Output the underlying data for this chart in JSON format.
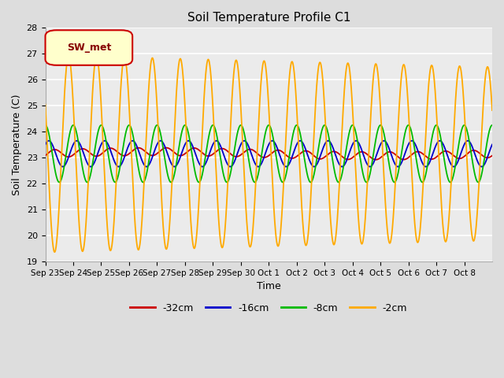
{
  "title": "Soil Temperature Profile C1",
  "xlabel": "Time",
  "ylabel": "Soil Temperature (C)",
  "ylim": [
    19.0,
    28.0
  ],
  "yticks": [
    19.0,
    20.0,
    21.0,
    22.0,
    23.0,
    24.0,
    25.0,
    26.0,
    27.0,
    28.0
  ],
  "xtick_labels": [
    "Sep 23",
    "Sep 24",
    "Sep 25",
    "Sep 26",
    "Sep 27",
    "Sep 28",
    "Sep 29",
    "Sep 30",
    "Oct 1",
    "Oct 2",
    "Oct 3",
    "Oct 4",
    "Oct 5",
    "Oct 6",
    "Oct 7",
    "Oct 8"
  ],
  "n_days": 16,
  "legend_label": "SW_met",
  "line_colors": {
    "-32cm": "#cc0000",
    "-16cm": "#0000cc",
    "-8cm": "#00bb00",
    "-2cm": "#ffaa00"
  },
  "legend_entries": [
    {
      "label": "-32cm",
      "color": "#cc0000"
    },
    {
      "label": "-16cm",
      "color": "#0000cc"
    },
    {
      "label": "-8cm",
      "color": "#00bb00"
    },
    {
      "label": "-2cm",
      "color": "#ffaa00"
    }
  ],
  "bg_color": "#dddddd",
  "plot_bg_color": "#ebebeb",
  "grid_color": "#ffffff",
  "sw_met_box_facecolor": "#ffffcc",
  "sw_met_box_edgecolor": "#cc0000",
  "sw_met_text_color": "#880000"
}
